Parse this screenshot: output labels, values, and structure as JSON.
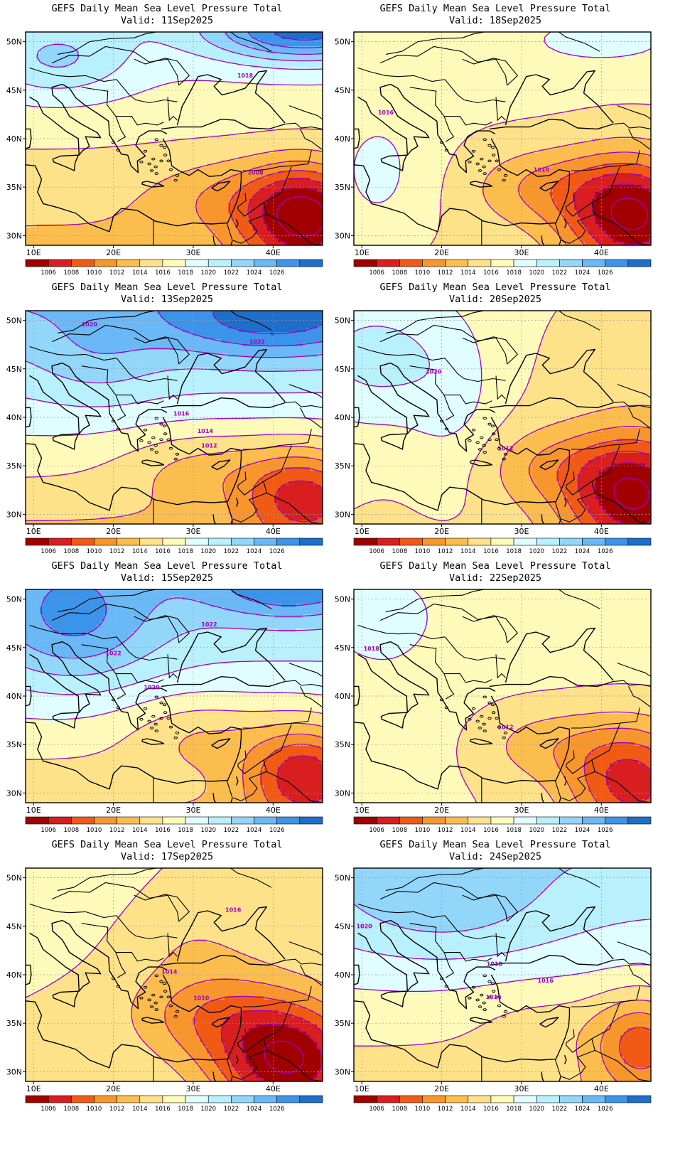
{
  "colorbar": {
    "labels": [
      "1006",
      "1008",
      "1010",
      "1012",
      "1014",
      "1016",
      "1018",
      "1020",
      "1022",
      "1024",
      "1026"
    ],
    "colors": [
      "#a00000",
      "#d81e1e",
      "#f05a14",
      "#f7962c",
      "#fbbe4e",
      "#fde289",
      "#fefbba",
      "#e0fdff",
      "#b8f0fc",
      "#92d6fa",
      "#6ab8f6",
      "#3c94ea",
      "#1e6ecc"
    ]
  },
  "contour_color": "#a000c0",
  "coastline_color": "#000000",
  "grid_color": "#9a9a9a",
  "axis": {
    "lon_labels": [
      "10E",
      "20E",
      "30E",
      "40E"
    ],
    "lat_labels": [
      "50N",
      "45N",
      "40N",
      "35N",
      "30N"
    ]
  },
  "panels": [
    {
      "id": "p1",
      "title": "GEFS Daily Mean Sea Level Pressure Total",
      "valid": "Valid: 11Sep2025",
      "contour_labels": [
        "1018",
        "1008"
      ],
      "scenario": "west-high-east-low"
    },
    {
      "id": "p2",
      "title": "GEFS Daily Mean Sea Level Pressure Total",
      "valid": "Valid: 18Sep2025",
      "contour_labels": [
        "1016",
        "1010"
      ],
      "scenario": "broad-low-southeast"
    },
    {
      "id": "p3",
      "title": "GEFS Daily Mean Sea Level Pressure Total",
      "valid": "Valid: 13Sep2025",
      "contour_labels": [
        "1020",
        "1022",
        "1016",
        "1014",
        "1012"
      ],
      "scenario": "strong-high-north"
    },
    {
      "id": "p4",
      "title": "GEFS Daily Mean Sea Level Pressure Total",
      "valid": "Valid: 20Sep2025",
      "contour_labels": [
        "1020",
        "1012"
      ],
      "scenario": "high-west-low-southeast"
    },
    {
      "id": "p5",
      "title": "GEFS Daily Mean Sea Level Pressure Total",
      "valid": "Valid: 15Sep2025",
      "contour_labels": [
        "1022",
        "1022",
        "1020"
      ],
      "scenario": "strong-high-northwest"
    },
    {
      "id": "p6",
      "title": "GEFS Daily Mean Sea Level Pressure Total",
      "valid": "Valid: 22Sep2025",
      "contour_labels": [
        "1018",
        "1012"
      ],
      "scenario": "weak-gradient"
    },
    {
      "id": "p7",
      "title": "GEFS Daily Mean Sea Level Pressure Total",
      "valid": "Valid: 17Sep2025",
      "contour_labels": [
        "1016",
        "1014",
        "1010"
      ],
      "scenario": "deep-low-southeast"
    },
    {
      "id": "p8",
      "title": "GEFS Daily Mean Sea Level Pressure Total",
      "valid": "Valid: 24Sep2025",
      "contour_labels": [
        "1020",
        "1018",
        "1016",
        "1016"
      ],
      "scenario": "high-north-weak-low"
    }
  ]
}
